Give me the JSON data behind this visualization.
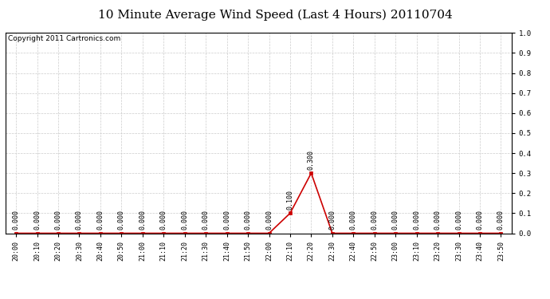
{
  "title": "10 Minute Average Wind Speed (Last 4 Hours) 20110704",
  "copyright": "Copyright 2011 Cartronics.com",
  "x_labels": [
    "20:00",
    "20:10",
    "20:20",
    "20:30",
    "20:40",
    "20:50",
    "21:00",
    "21:10",
    "21:20",
    "21:30",
    "21:40",
    "21:50",
    "22:00",
    "22:10",
    "22:20",
    "22:30",
    "22:40",
    "22:50",
    "23:00",
    "23:10",
    "23:20",
    "23:30",
    "23:40",
    "23:50"
  ],
  "y_values": [
    0.0,
    0.0,
    0.0,
    0.0,
    0.0,
    0.0,
    0.0,
    0.0,
    0.0,
    0.0,
    0.0,
    0.0,
    0.0,
    0.1,
    0.3,
    0.0,
    0.0,
    0.0,
    0.0,
    0.0,
    0.0,
    0.0,
    0.0,
    0.0
  ],
  "ylim": [
    0.0,
    1.0
  ],
  "yticks": [
    0.0,
    0.1,
    0.2,
    0.3,
    0.4,
    0.5,
    0.6,
    0.7,
    0.8,
    0.9,
    1.0
  ],
  "line_color": "#cc0000",
  "marker_color": "#cc0000",
  "bg_color": "#ffffff",
  "grid_color": "#cccccc",
  "title_fontsize": 11,
  "copyright_fontsize": 6.5,
  "label_fontsize": 6,
  "annotation_fontsize": 6
}
